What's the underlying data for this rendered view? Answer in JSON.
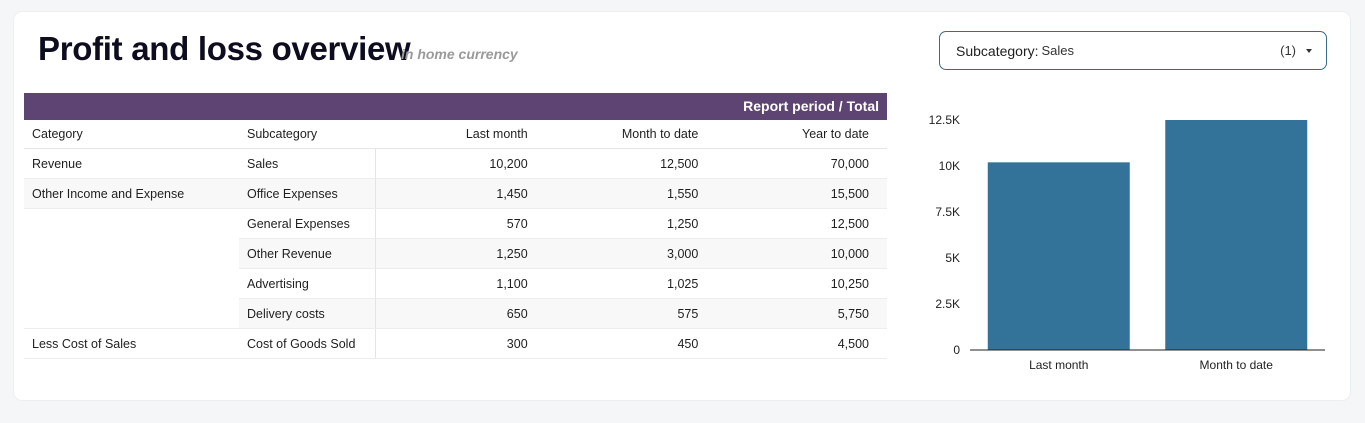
{
  "header": {
    "title": "Profit and loss overview",
    "subtitle": "in home currency"
  },
  "filter": {
    "label": "Subcategory:",
    "value": "Sales",
    "count": "(1)"
  },
  "table": {
    "band_label": "Report period / Total",
    "columns": [
      "Category",
      "Subcategory",
      "Last month",
      "Month to date",
      "Year to date"
    ],
    "rows": [
      {
        "category": "Revenue",
        "subcategory": "Sales",
        "last_month": "10,200",
        "month_to_date": "12,500",
        "year_to_date": "70,000"
      },
      {
        "category": "Other Income and Expense",
        "subcategory": "Office Expenses",
        "last_month": "1,450",
        "month_to_date": "1,550",
        "year_to_date": "15,500"
      },
      {
        "category": "",
        "subcategory": "General Expenses",
        "last_month": "570",
        "month_to_date": "1,250",
        "year_to_date": "12,500"
      },
      {
        "category": "",
        "subcategory": "Other Revenue",
        "last_month": "1,250",
        "month_to_date": "3,000",
        "year_to_date": "10,000"
      },
      {
        "category": "",
        "subcategory": "Advertising",
        "last_month": "1,100",
        "month_to_date": "1,025",
        "year_to_date": "10,250"
      },
      {
        "category": "",
        "subcategory": "Delivery costs",
        "last_month": "650",
        "month_to_date": "575",
        "year_to_date": "5,750"
      },
      {
        "category": "Less Cost of Sales",
        "subcategory": "Cost of Goods Sold",
        "last_month": "300",
        "month_to_date": "450",
        "year_to_date": "4,500"
      }
    ]
  },
  "chart_data": {
    "type": "bar",
    "categories": [
      "Last month",
      "Month to date"
    ],
    "values": [
      10200,
      12500
    ],
    "ylim": [
      0,
      12500
    ],
    "yticks": [
      0,
      2500,
      5000,
      7500,
      10000,
      12500
    ],
    "yticklabels": [
      "0",
      "2.5K",
      "5K",
      "7.5K",
      "10K",
      "12.5K"
    ],
    "grid": false,
    "bar_color": "#33739a"
  },
  "colors": {
    "band": "#5e4472",
    "filter_border": "#3b6b8a"
  }
}
